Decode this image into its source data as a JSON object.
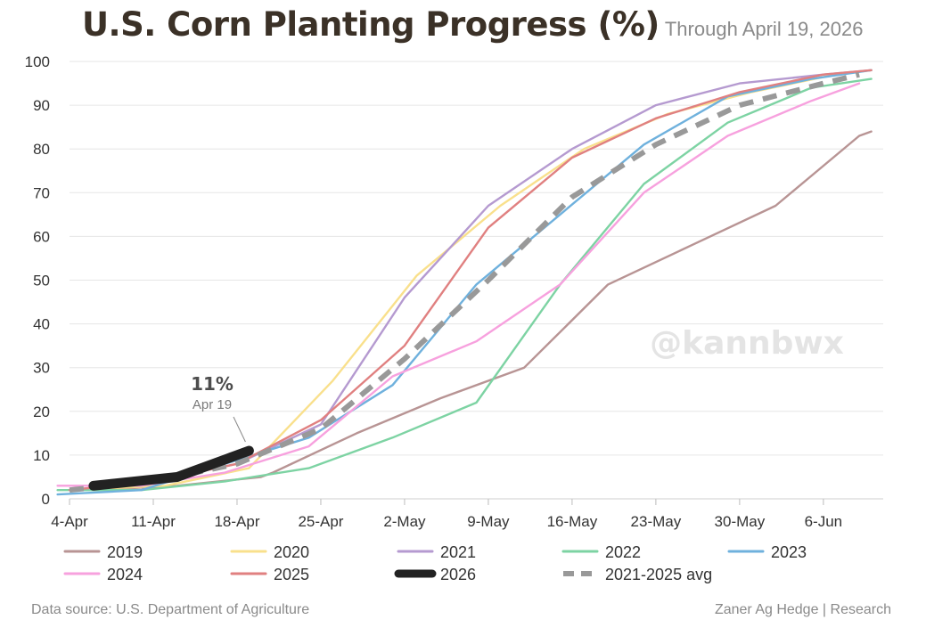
{
  "header": {
    "title": "U.S. Corn Planting Progress (%)",
    "subtitle": "Through April 19, 2026"
  },
  "footer": {
    "source": "Data source: U.S. Department of Agriculture",
    "credit": "Zaner Ag Hedge | Research"
  },
  "watermark": "@kannbwx",
  "annotation": {
    "value_label": "11%",
    "date_label": "Apr 19",
    "x": "19-Apr",
    "y": 11
  },
  "chart_data": {
    "type": "line",
    "title": "U.S. Corn Planting Progress (%)",
    "subtitle": "Through April 19, 2026",
    "xlabel": "",
    "ylabel": "",
    "x_ticks": [
      "4-Apr",
      "11-Apr",
      "18-Apr",
      "25-Apr",
      "2-May",
      "9-May",
      "16-May",
      "23-May",
      "30-May",
      "6-Jun"
    ],
    "y_ticks": [
      0,
      10,
      20,
      30,
      40,
      50,
      60,
      70,
      80,
      90,
      100
    ],
    "ylim": [
      0,
      100
    ],
    "xlim": [
      "4-Apr",
      "11-Jun"
    ],
    "grid": "horizontal",
    "legend": "bottom",
    "series": [
      {
        "name": "2019",
        "color": "#b89494",
        "dashed": false,
        "points": [
          [
            "6-Apr",
            2
          ],
          [
            "13-Apr",
            3
          ],
          [
            "20-Apr",
            5
          ],
          [
            "21-Apr",
            6
          ],
          [
            "28-Apr",
            15
          ],
          [
            "5-May",
            23
          ],
          [
            "12-May",
            30
          ],
          [
            "19-May",
            49
          ],
          [
            "26-May",
            58
          ],
          [
            "2-Jun",
            67
          ],
          [
            "9-Jun",
            83
          ],
          [
            "10-Jun",
            84
          ]
        ]
      },
      {
        "name": "2020",
        "color": "#f9e08c",
        "dashed": false,
        "points": [
          [
            "4-Apr",
            2
          ],
          [
            "12-Apr",
            3
          ],
          [
            "19-Apr",
            7
          ],
          [
            "26-Apr",
            27
          ],
          [
            "3-May",
            51
          ],
          [
            "10-May",
            67
          ],
          [
            "17-May",
            80
          ],
          [
            "24-May",
            88
          ],
          [
            "31-May",
            93
          ],
          [
            "7-Jun",
            97
          ],
          [
            "10-Jun",
            98
          ]
        ]
      },
      {
        "name": "2021",
        "color": "#b59ad0",
        "dashed": false,
        "points": [
          [
            "4-Apr",
            2
          ],
          [
            "11-Apr",
            4
          ],
          [
            "18-Apr",
            8
          ],
          [
            "25-Apr",
            17
          ],
          [
            "2-May",
            46
          ],
          [
            "9-May",
            67
          ],
          [
            "16-May",
            80
          ],
          [
            "23-May",
            90
          ],
          [
            "30-May",
            95
          ],
          [
            "6-Jun",
            97
          ],
          [
            "10-Jun",
            98
          ]
        ]
      },
      {
        "name": "2022",
        "color": "#7dd3a3",
        "dashed": false,
        "points": [
          [
            "3-Apr",
            2
          ],
          [
            "10-Apr",
            2
          ],
          [
            "17-Apr",
            4
          ],
          [
            "24-Apr",
            7
          ],
          [
            "1-May",
            14
          ],
          [
            "8-May",
            22
          ],
          [
            "15-May",
            49
          ],
          [
            "22-May",
            72
          ],
          [
            "29-May",
            86
          ],
          [
            "5-Jun",
            94
          ],
          [
            "10-Jun",
            96
          ]
        ]
      },
      {
        "name": "2023",
        "color": "#6fb1dd",
        "dashed": false,
        "points": [
          [
            "3-Apr",
            1
          ],
          [
            "10-Apr",
            2
          ],
          [
            "17-Apr",
            8
          ],
          [
            "24-Apr",
            14
          ],
          [
            "1-May",
            26
          ],
          [
            "8-May",
            49
          ],
          [
            "15-May",
            65
          ],
          [
            "22-May",
            81
          ],
          [
            "29-May",
            92
          ],
          [
            "5-Jun",
            96
          ],
          [
            "10-Jun",
            98
          ]
        ]
      },
      {
        "name": "2024",
        "color": "#f7a1de",
        "dashed": false,
        "points": [
          [
            "3-Apr",
            3
          ],
          [
            "10-Apr",
            3
          ],
          [
            "17-Apr",
            6
          ],
          [
            "24-Apr",
            12
          ],
          [
            "1-May",
            28
          ],
          [
            "8-May",
            36
          ],
          [
            "15-May",
            49
          ],
          [
            "22-May",
            70
          ],
          [
            "29-May",
            83
          ],
          [
            "5-Jun",
            91
          ],
          [
            "9-Jun",
            95
          ]
        ]
      },
      {
        "name": "2025",
        "color": "#e08080",
        "dashed": false,
        "points": [
          [
            "4-Apr",
            2
          ],
          [
            "11-Apr",
            4
          ],
          [
            "18-Apr",
            8
          ],
          [
            "25-Apr",
            18
          ],
          [
            "2-May",
            35
          ],
          [
            "9-May",
            62
          ],
          [
            "16-May",
            78
          ],
          [
            "23-May",
            87
          ],
          [
            "30-May",
            93
          ],
          [
            "6-Jun",
            97
          ],
          [
            "10-Jun",
            98
          ]
        ]
      },
      {
        "name": "2026",
        "color": "#222222",
        "dashed": false,
        "points": [
          [
            "6-Apr",
            3
          ],
          [
            "13-Apr",
            5
          ],
          [
            "19-Apr",
            11
          ]
        ]
      },
      {
        "name": "2021-2025 avg",
        "color": "#999999",
        "dashed": true,
        "points": [
          [
            "4-Apr",
            2
          ],
          [
            "11-Apr",
            4
          ],
          [
            "18-Apr",
            8
          ],
          [
            "25-Apr",
            16
          ],
          [
            "2-May",
            32
          ],
          [
            "9-May",
            50
          ],
          [
            "16-May",
            69
          ],
          [
            "23-May",
            81
          ],
          [
            "30-May",
            90
          ],
          [
            "6-Jun",
            95
          ],
          [
            "9-Jun",
            97
          ]
        ]
      }
    ]
  }
}
